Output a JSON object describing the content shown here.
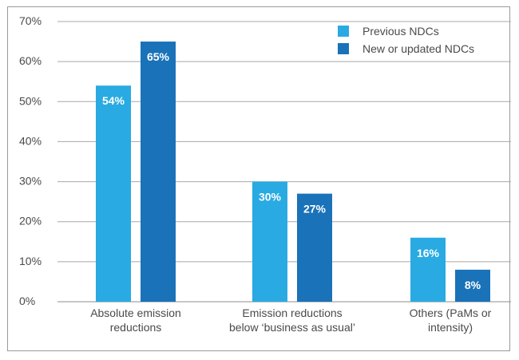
{
  "chart_data": {
    "type": "bar",
    "categories": [
      [
        "Absolute emission",
        "reductions"
      ],
      [
        "Emission reductions",
        "below ‘business as usual’"
      ],
      [
        "Others (PaMs or",
        "intensity)"
      ]
    ],
    "series": [
      {
        "name": "Previous NDCs",
        "values": [
          54,
          30,
          16
        ],
        "labels": [
          "54%",
          "30%",
          "16%"
        ],
        "color": "#29aae2"
      },
      {
        "name": "New or updated NDCs",
        "values": [
          65,
          27,
          8
        ],
        "labels": [
          "65%",
          "27%",
          "8%"
        ],
        "color": "#1a72b8"
      }
    ],
    "yticks": [
      "0%",
      "10%",
      "20%",
      "30%",
      "40%",
      "50%",
      "60%",
      "70%"
    ],
    "ylim": [
      0,
      70
    ],
    "grid": true,
    "legend_position": "top-right",
    "xlabel": "",
    "ylabel": ""
  }
}
